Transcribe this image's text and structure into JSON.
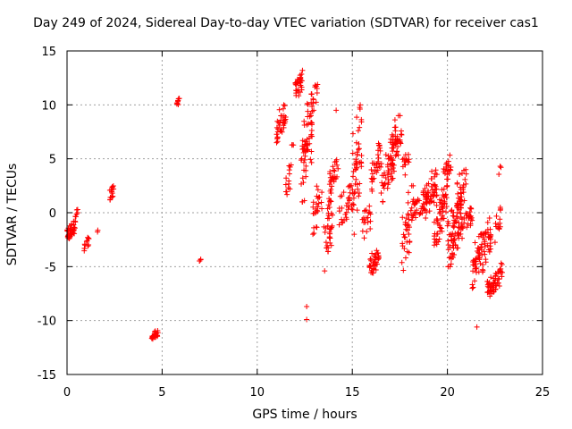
{
  "chart_data": {
    "type": "scatter",
    "title": "Day 249 of 2024, Sidereal Day-to-day VTEC variation (SDTVAR) for receiver cas1",
    "xlabel": "GPS time / hours",
    "ylabel": "SDTVAR / TECUs",
    "xlim": [
      0,
      25
    ],
    "ylim": [
      -15,
      15
    ],
    "xticks": [
      0,
      5,
      10,
      15,
      20,
      25
    ],
    "yticks": [
      -15,
      -10,
      -5,
      0,
      5,
      10,
      15
    ],
    "grid": true,
    "marker": "+",
    "color": "#ff0000",
    "clusters": [
      {
        "x": [
          0.0,
          0.45
        ],
        "y": [
          -2.5,
          -0.8
        ],
        "n": 40
      },
      {
        "x": [
          0.4,
          0.6
        ],
        "y": [
          -0.8,
          0.8
        ],
        "n": 6
      },
      {
        "x": [
          0.9,
          1.15
        ],
        "y": [
          -3.6,
          -2.3
        ],
        "n": 12
      },
      {
        "x": [
          1.6,
          1.75
        ],
        "y": [
          -1.8,
          -1.5
        ],
        "n": 2
      },
      {
        "x": [
          2.25,
          2.45
        ],
        "y": [
          0.5,
          2.7
        ],
        "n": 14
      },
      {
        "x": [
          4.45,
          4.8
        ],
        "y": [
          -11.9,
          -10.8
        ],
        "n": 24
      },
      {
        "x": [
          5.75,
          5.95
        ],
        "y": [
          9.9,
          10.6
        ],
        "n": 10
      },
      {
        "x": [
          6.95,
          7.1
        ],
        "y": [
          -4.7,
          -4.2
        ],
        "n": 4
      },
      {
        "x": [
          11.0,
          11.5
        ],
        "y": [
          6.5,
          10.0
        ],
        "n": 35
      },
      {
        "x": [
          11.5,
          11.8
        ],
        "y": [
          1.5,
          4.5
        ],
        "n": 14
      },
      {
        "x": [
          11.8,
          12.0
        ],
        "y": [
          6.0,
          6.5
        ],
        "n": 3
      },
      {
        "x": [
          12.0,
          12.4
        ],
        "y": [
          10.5,
          13.2
        ],
        "n": 30
      },
      {
        "x": [
          12.3,
          12.9
        ],
        "y": [
          1.0,
          11.0
        ],
        "n": 60
      },
      {
        "x": [
          12.8,
          13.2
        ],
        "y": [
          9.0,
          12.0
        ],
        "n": 14
      },
      {
        "x": [
          12.9,
          13.4
        ],
        "y": [
          -2.0,
          3.0
        ],
        "n": 25
      },
      {
        "x": [
          13.5,
          14.0
        ],
        "y": [
          -5.5,
          2.0
        ],
        "n": 40
      },
      {
        "x": [
          13.8,
          14.3
        ],
        "y": [
          2.0,
          5.0
        ],
        "n": 25
      },
      {
        "x": [
          14.3,
          15.0
        ],
        "y": [
          -2.0,
          2.5
        ],
        "n": 30
      },
      {
        "x": [
          15.0,
          15.5
        ],
        "y": [
          -2.0,
          10.0
        ],
        "n": 50
      },
      {
        "x": [
          15.5,
          16.0
        ],
        "y": [
          -3.0,
          1.0
        ],
        "n": 20
      },
      {
        "x": [
          15.9,
          16.4
        ],
        "y": [
          -6.0,
          -3.5
        ],
        "n": 35
      },
      {
        "x": [
          16.0,
          16.5
        ],
        "y": [
          2.0,
          6.5
        ],
        "n": 30
      },
      {
        "x": [
          16.5,
          17.2
        ],
        "y": [
          1.0,
          6.0
        ],
        "n": 45
      },
      {
        "x": [
          17.0,
          17.6
        ],
        "y": [
          4.0,
          9.0
        ],
        "n": 45
      },
      {
        "x": [
          17.6,
          18.0
        ],
        "y": [
          3.0,
          6.0
        ],
        "n": 14
      },
      {
        "x": [
          17.6,
          18.2
        ],
        "y": [
          -6.0,
          2.5
        ],
        "n": 40
      },
      {
        "x": [
          18.2,
          19.0
        ],
        "y": [
          -1.0,
          2.0
        ],
        "n": 40
      },
      {
        "x": [
          18.8,
          19.5
        ],
        "y": [
          -0.5,
          4.0
        ],
        "n": 40
      },
      {
        "x": [
          19.3,
          20.0
        ],
        "y": [
          -3.0,
          2.5
        ],
        "n": 60
      },
      {
        "x": [
          19.8,
          20.2
        ],
        "y": [
          2.0,
          5.6
        ],
        "n": 20
      },
      {
        "x": [
          20.0,
          20.8
        ],
        "y": [
          -5.0,
          1.0
        ],
        "n": 80
      },
      {
        "x": [
          20.5,
          21.0
        ],
        "y": [
          0.0,
          4.0
        ],
        "n": 30
      },
      {
        "x": [
          20.8,
          21.3
        ],
        "y": [
          -2.0,
          0.5
        ],
        "n": 25
      },
      {
        "x": [
          21.3,
          21.8
        ],
        "y": [
          -7.0,
          -2.0
        ],
        "n": 40
      },
      {
        "x": [
          21.8,
          22.3
        ],
        "y": [
          -5.5,
          -0.5
        ],
        "n": 40
      },
      {
        "x": [
          22.1,
          22.7
        ],
        "y": [
          -8.0,
          -5.5
        ],
        "n": 45
      },
      {
        "x": [
          22.5,
          22.8
        ],
        "y": [
          -3.5,
          0.5
        ],
        "n": 14
      },
      {
        "x": [
          22.7,
          22.9
        ],
        "y": [
          -7.0,
          -4.5
        ],
        "n": 12
      },
      {
        "x": [
          22.7,
          22.85
        ],
        "y": [
          3.0,
          4.5
        ],
        "n": 3
      }
    ],
    "outliers": [
      {
        "x": 12.6,
        "y": -8.7
      },
      {
        "x": 12.6,
        "y": -9.9
      },
      {
        "x": 21.55,
        "y": -10.6
      },
      {
        "x": 13.15,
        "y": 11.1
      },
      {
        "x": 14.15,
        "y": 9.5
      }
    ]
  }
}
